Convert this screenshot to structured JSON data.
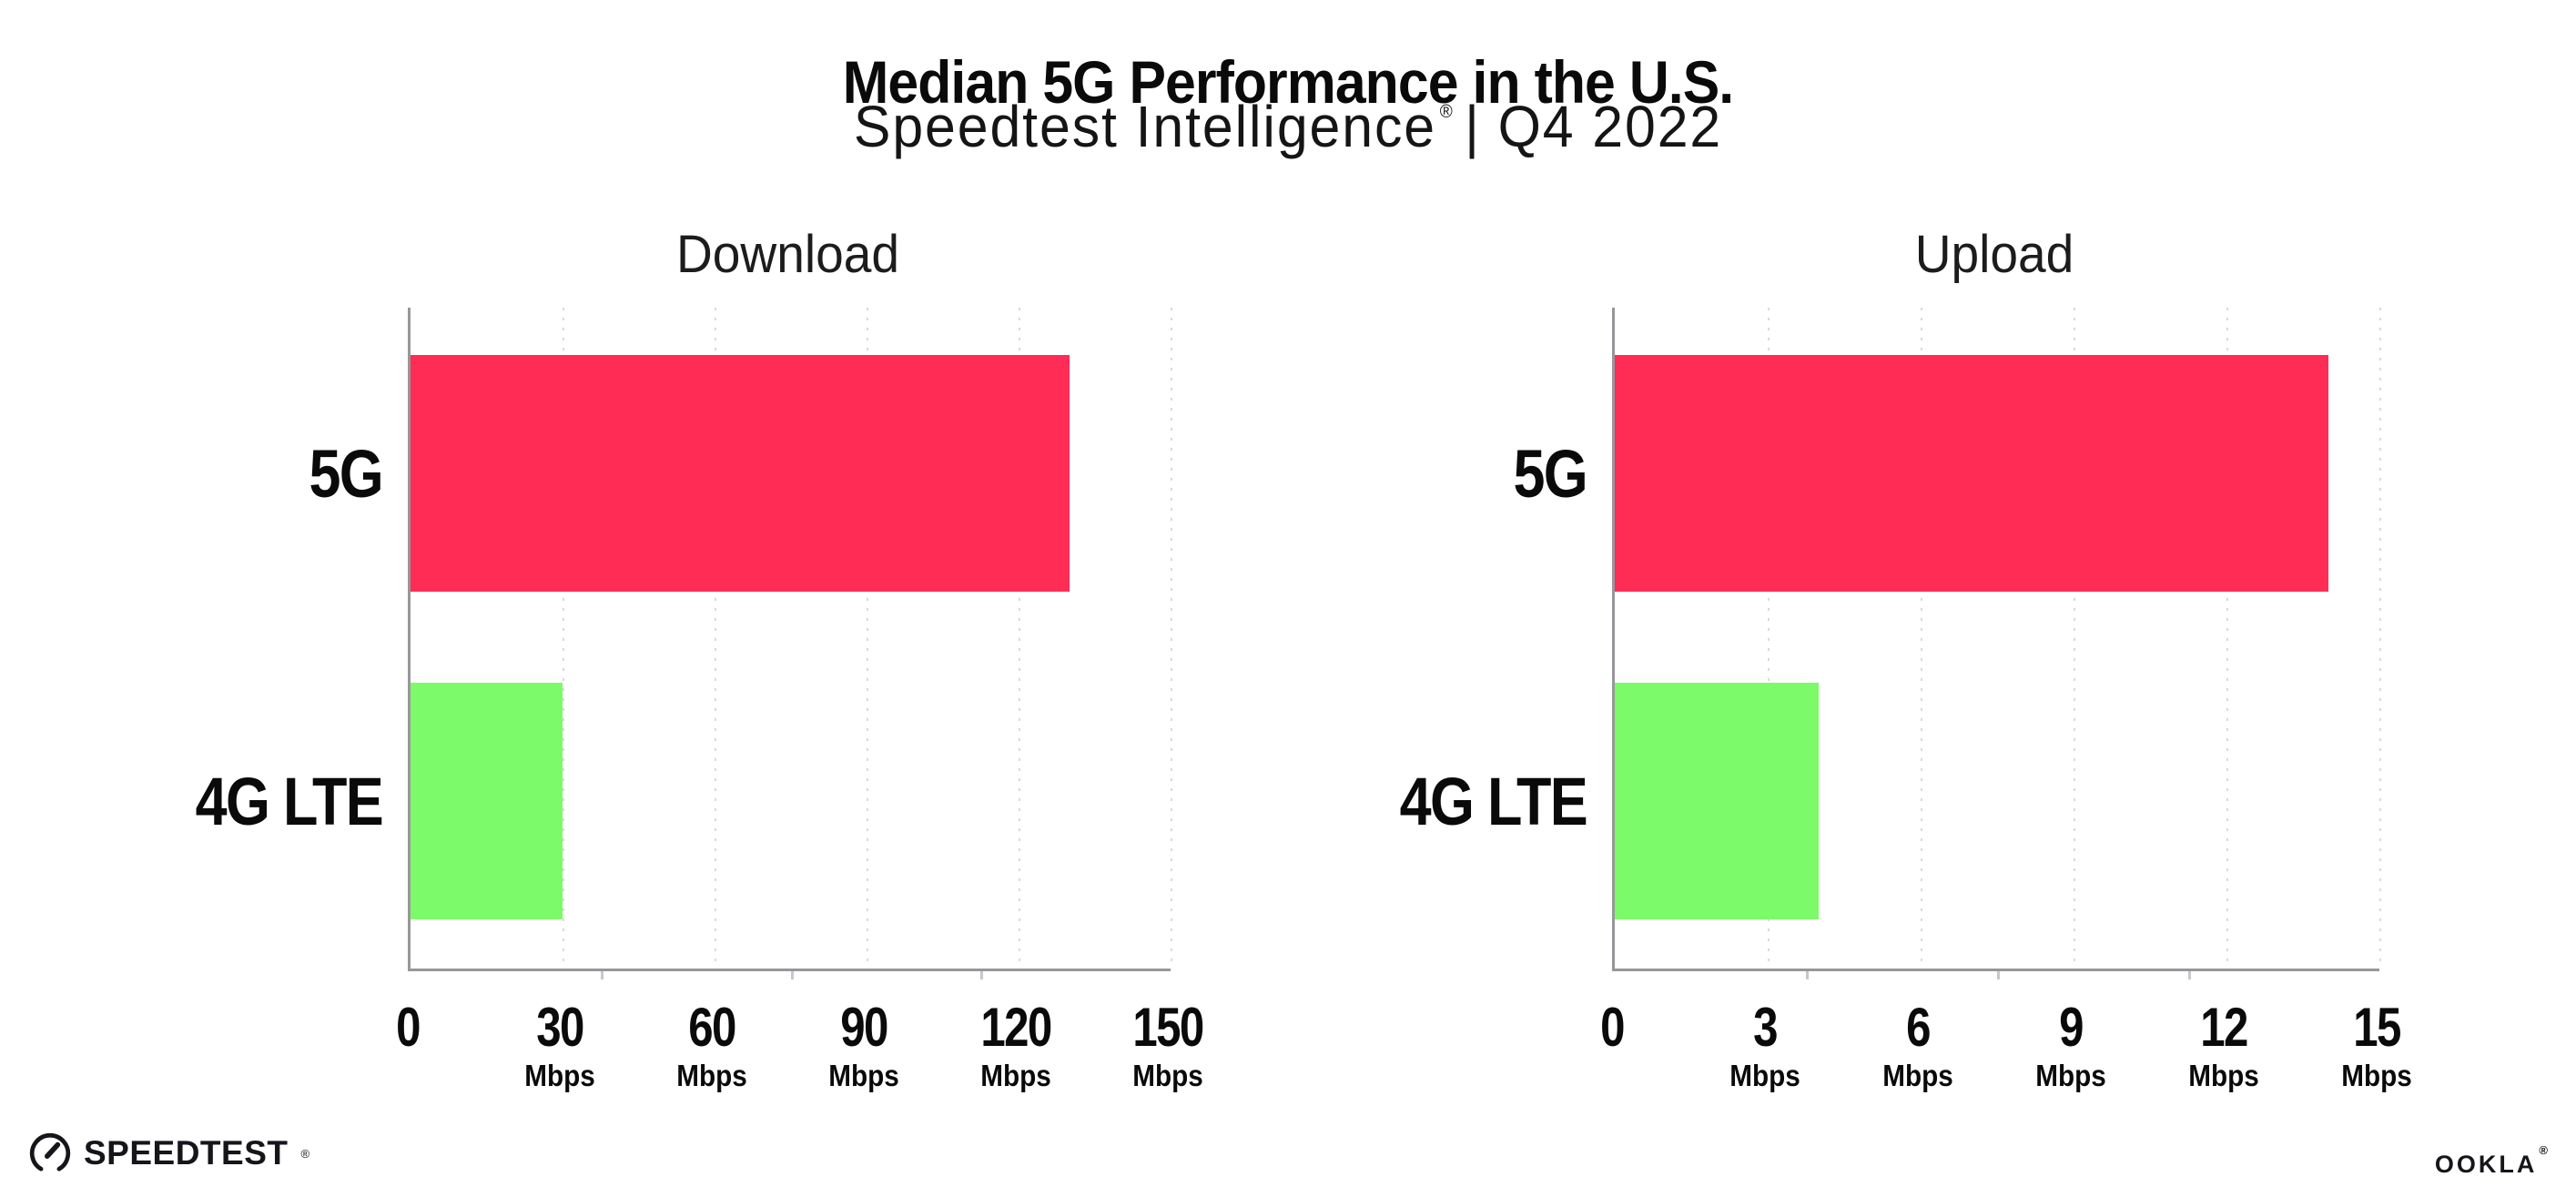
{
  "header": {
    "title": "Median 5G Performance in the U.S.",
    "subtitle_brand": "Speedtest Intelligence",
    "subtitle_reg": "®",
    "subtitle_rest": "| Q4 2022"
  },
  "footer": {
    "speedtest_logo_text": "SPEEDTEST",
    "speedtest_reg": "®",
    "ookla_logo_text": "OOKLA",
    "ookla_reg": "®"
  },
  "colors": {
    "bar_5g": "#FF2D55",
    "bar_4g_lte": "#7DFA69",
    "axis": "#97979B",
    "gridline": "#D9D9DE",
    "logo_ink": "#15151B"
  },
  "chart_data": [
    {
      "type": "bar",
      "orientation": "horizontal",
      "title": "Download",
      "categories": [
        "5G",
        "4G LTE"
      ],
      "values": [
        130,
        30
      ],
      "unit": "Mbps",
      "xlabel": "",
      "ylabel": "",
      "xlim": [
        0,
        150
      ],
      "xticks": [
        0,
        30,
        60,
        90,
        120,
        150
      ],
      "bar_colors": [
        "#FF2D55",
        "#7DFA69"
      ],
      "grid": "dotted vertical gridlines at each tick",
      "legend": "none"
    },
    {
      "type": "bar",
      "orientation": "horizontal",
      "title": "Upload",
      "categories": [
        "5G",
        "4G LTE"
      ],
      "values": [
        14,
        4
      ],
      "unit": "Mbps",
      "xlabel": "",
      "ylabel": "",
      "xlim": [
        0,
        15
      ],
      "xticks": [
        0,
        3,
        6,
        9,
        12,
        15
      ],
      "bar_colors": [
        "#FF2D55",
        "#7DFA69"
      ],
      "grid": "dotted vertical gridlines at each tick",
      "legend": "none"
    }
  ]
}
